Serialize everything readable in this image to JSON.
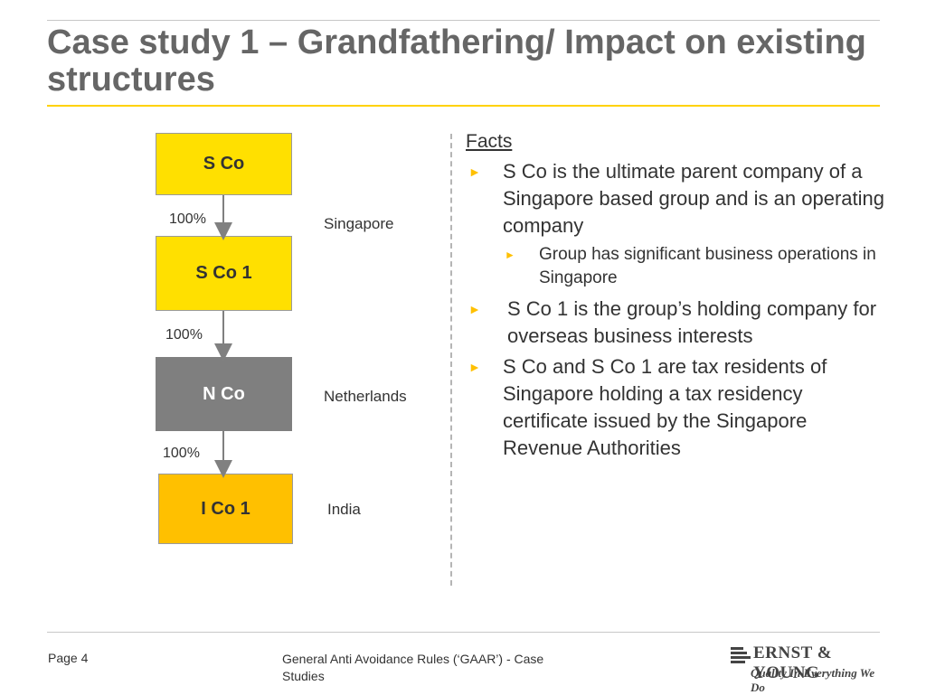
{
  "slide": {
    "title": "Case study 1 – Grandfathering/ Impact on existing structures"
  },
  "diagram": {
    "entities": [
      {
        "label": "S Co"
      },
      {
        "label": "S Co 1"
      },
      {
        "label": "N Co"
      },
      {
        "label": "I Co 1"
      }
    ],
    "ownership": [
      "100%",
      "100%",
      "100%"
    ],
    "countries": [
      "Singapore",
      "Netherlands",
      "India"
    ],
    "colors": {
      "yellow": "#ffe000",
      "gray": "#7f7f7f",
      "gold": "#ffc000"
    }
  },
  "facts": {
    "heading": "Facts",
    "marker": "►",
    "bullets": [
      "S Co is the ultimate parent company of a Singapore based group and is an operating company",
      "Group has significant business operations in Singapore",
      "S Co 1 is the group’s holding company for overseas business interests",
      "S Co and S Co 1 are tax residents of Singapore holding a tax residency certificate issued by the Singapore Revenue Authorities"
    ]
  },
  "footer": {
    "page": "Page 4",
    "text": "General Anti Avoidance Rules (‘GAAR’)  - Case Studies",
    "logo_name": "ERNST & YOUNG",
    "logo_tagline": "Quality In Everything We Do",
    "logo_icon": "ernst-young-logo-icon"
  }
}
